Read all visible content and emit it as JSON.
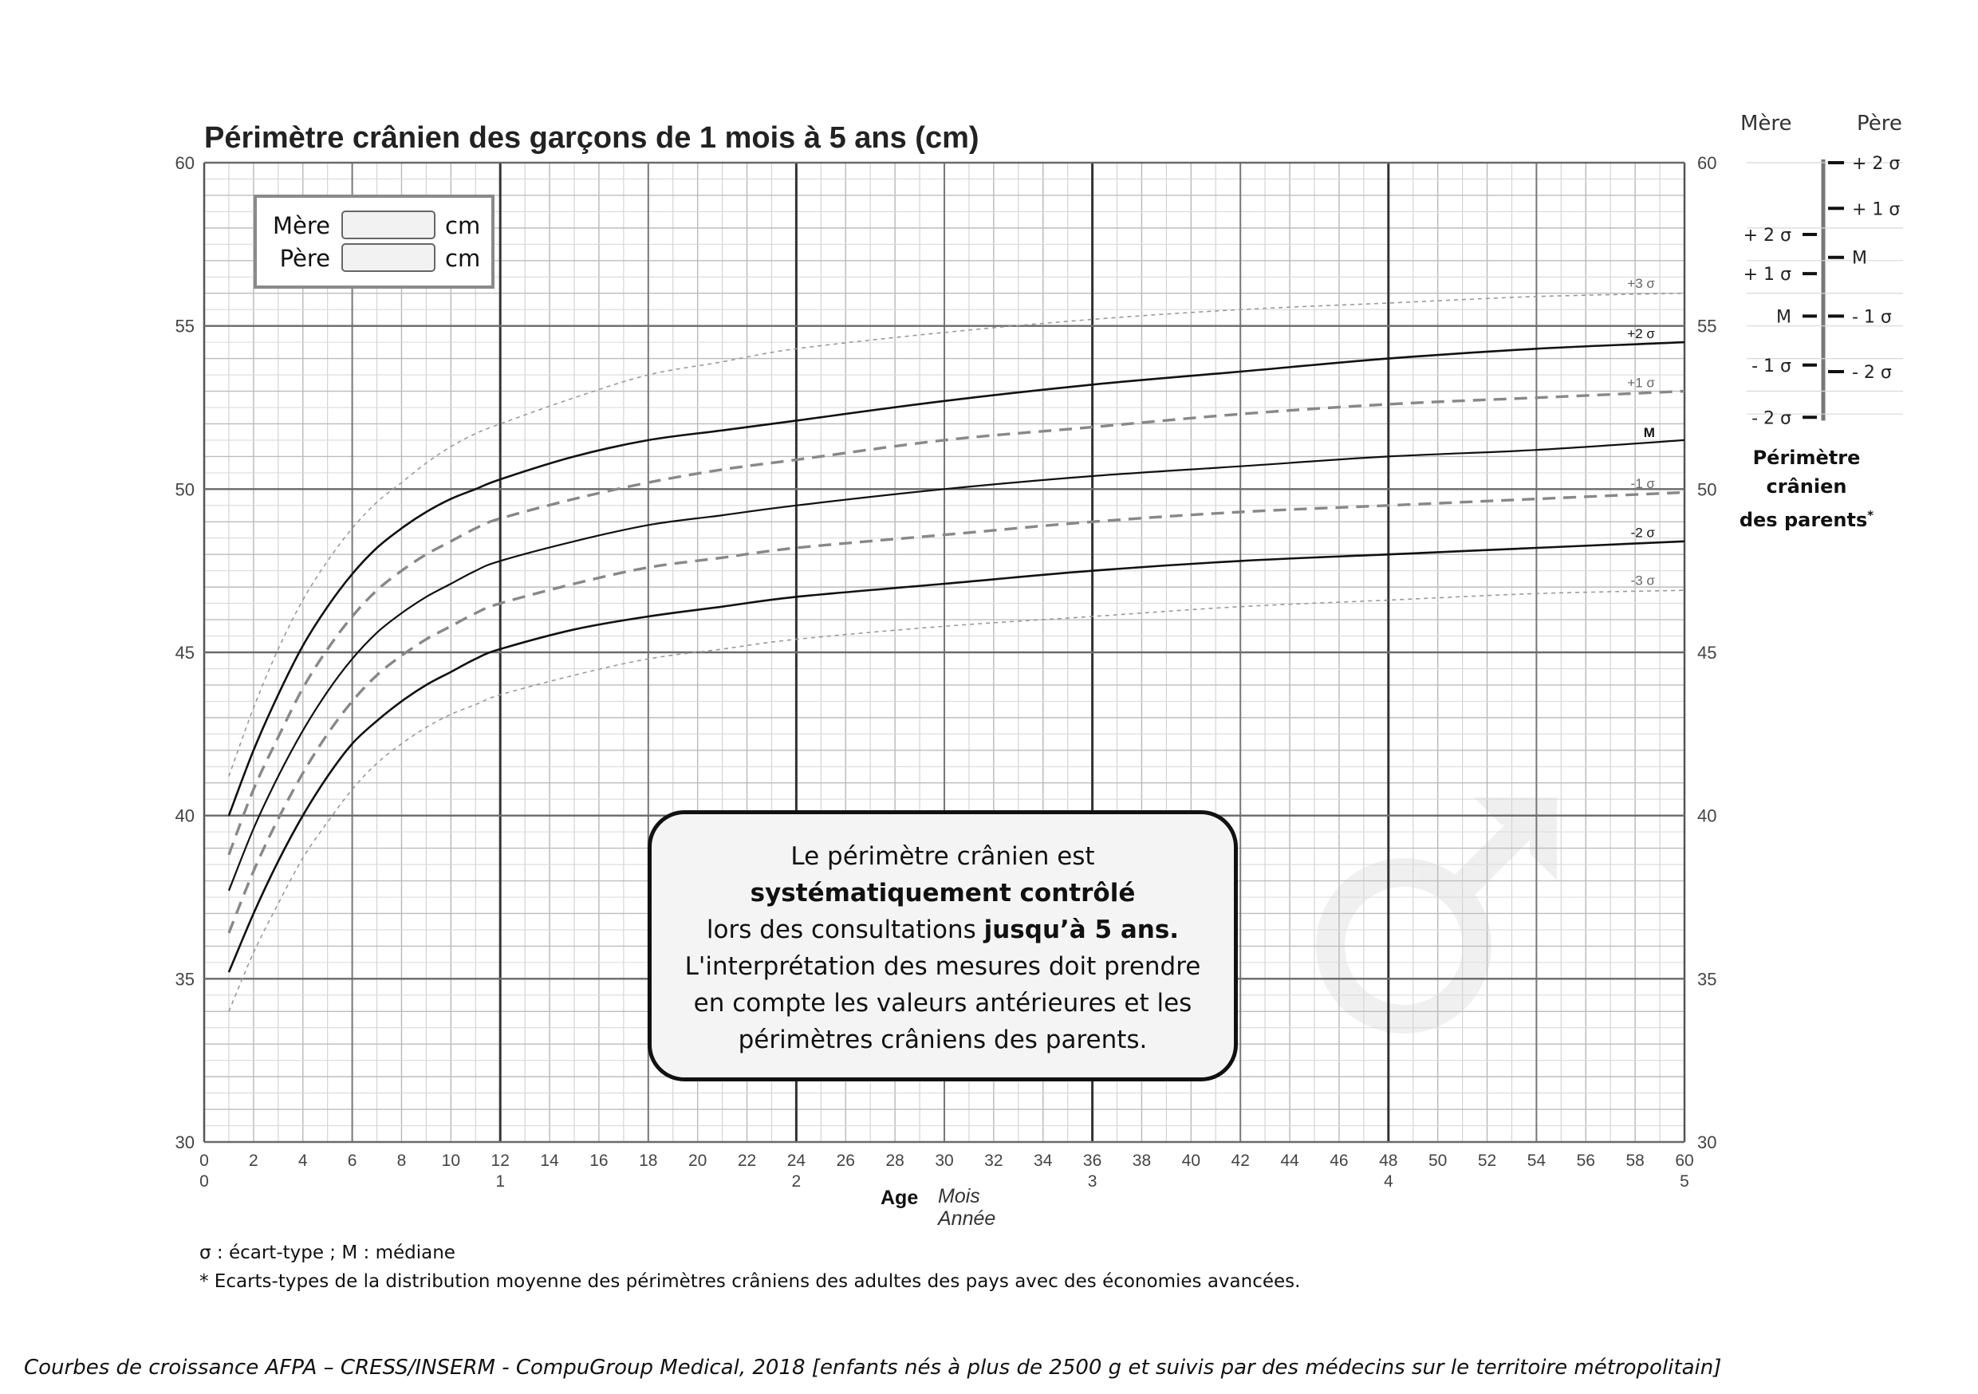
{
  "header": {
    "title": "Périmètre crânien des garçons de 1 mois à 5 ans (cm)"
  },
  "parents_input": {
    "mother_label": "Mère",
    "father_label": "Père",
    "unit": "cm",
    "mother_value": "",
    "father_value": ""
  },
  "note": {
    "line1": "Le périmètre crânien est",
    "line2_bold": "systématiquement contrôlé",
    "line3_normal": "lors des consultations ",
    "line3_bold": "jusqu’à 5 ans.",
    "line4": "L'interprétation des mesures doit prendre",
    "line5": "en compte les valeurs antérieures et les",
    "line6": "périmètres crâniens des parents."
  },
  "axis": {
    "age_label": "Age",
    "months_label": "Mois",
    "years_label": "Année"
  },
  "parents_scale": {
    "mother_header": "Mère",
    "father_header": "Père",
    "title_line1": "Périmètre crânien",
    "title_line2": "des parents",
    "title_mark": "*",
    "mother_ticks": [
      {
        "label": "+ 2 σ",
        "value": 57.8
      },
      {
        "label": "+ 1 σ",
        "value": 56.6
      },
      {
        "label": "M",
        "value": 55.3
      },
      {
        "label": "- 1 σ",
        "value": 53.8
      },
      {
        "label": "- 2 σ",
        "value": 52.2
      }
    ],
    "father_ticks": [
      {
        "label": "+ 2 σ",
        "value": 60.0
      },
      {
        "label": "+ 1 σ",
        "value": 58.6
      },
      {
        "label": "M",
        "value": 57.1
      },
      {
        "label": "- 1 σ",
        "value": 55.3
      },
      {
        "label": "- 2 σ",
        "value": 53.6
      }
    ]
  },
  "footnotes": {
    "sigma": "σ : écart-type ; M : médiane",
    "star": "* Ecarts-types de la distribution moyenne des périmètres crâniens des adultes des pays avec des économies avancées."
  },
  "source": "Courbes de croissance  AFPA – CRESS/INSERM - CompuGroup Medical, 2018 [enfants nés à plus de 2500 g et suivis par des médecins sur le territoire métropolitain]",
  "colors": {
    "solid_curve": "#111111",
    "dashed_curve": "#888888",
    "dotted_curve": "#9a9a9a",
    "grid_minor": "#c8c8c8",
    "grid_major": "#6e6e6e"
  },
  "chart_data": {
    "type": "line",
    "xlabel": "Age",
    "x_units": [
      "Mois",
      "Année"
    ],
    "xlim": [
      0,
      60
    ],
    "ylim": [
      30,
      60
    ],
    "x_ticks": [
      0,
      2,
      4,
      6,
      8,
      10,
      12,
      14,
      16,
      18,
      20,
      22,
      24,
      26,
      28,
      30,
      32,
      34,
      36,
      38,
      40,
      42,
      44,
      46,
      48,
      50,
      52,
      54,
      56,
      58,
      60
    ],
    "x_year_ticks": [
      {
        "x": 0,
        "label": "0"
      },
      {
        "x": 12,
        "label": "1"
      },
      {
        "x": 24,
        "label": "2"
      },
      {
        "x": 36,
        "label": "3"
      },
      {
        "x": 48,
        "label": "4"
      },
      {
        "x": 60,
        "label": "5"
      }
    ],
    "y_ticks": [
      30,
      35,
      40,
      45,
      50,
      55,
      60
    ],
    "grid": true,
    "x": [
      1,
      2,
      3,
      4,
      5,
      6,
      7,
      8,
      9,
      10,
      11,
      12,
      15,
      18,
      21,
      24,
      30,
      36,
      42,
      48,
      54,
      60
    ],
    "series": [
      {
        "name": "+3 σ",
        "style": "dotted",
        "values": [
          41.2,
          43.3,
          45.1,
          46.6,
          47.8,
          48.8,
          49.6,
          50.2,
          50.8,
          51.3,
          51.7,
          52.0,
          52.8,
          53.5,
          53.9,
          54.3,
          54.8,
          55.2,
          55.5,
          55.7,
          55.9,
          56.0
        ]
      },
      {
        "name": "+2 σ",
        "style": "solid",
        "values": [
          40.0,
          42.0,
          43.7,
          45.2,
          46.4,
          47.4,
          48.2,
          48.8,
          49.3,
          49.7,
          50.0,
          50.3,
          51.0,
          51.5,
          51.8,
          52.1,
          52.7,
          53.2,
          53.6,
          54.0,
          54.3,
          54.5
        ]
      },
      {
        "name": "+1 σ",
        "style": "dashed",
        "values": [
          38.8,
          40.8,
          42.4,
          43.9,
          45.1,
          46.1,
          46.9,
          47.5,
          48.0,
          48.4,
          48.8,
          49.1,
          49.7,
          50.2,
          50.6,
          50.9,
          51.5,
          51.9,
          52.3,
          52.6,
          52.8,
          53.0
        ]
      },
      {
        "name": "M",
        "style": "solid",
        "values": [
          37.7,
          39.6,
          41.2,
          42.6,
          43.8,
          44.8,
          45.6,
          46.2,
          46.7,
          47.1,
          47.5,
          47.8,
          48.4,
          48.9,
          49.2,
          49.5,
          50.0,
          50.4,
          50.7,
          51.0,
          51.2,
          51.5
        ]
      },
      {
        "name": "-1 σ",
        "style": "dashed",
        "values": [
          36.4,
          38.3,
          39.9,
          41.3,
          42.5,
          43.5,
          44.3,
          44.9,
          45.4,
          45.8,
          46.2,
          46.5,
          47.1,
          47.6,
          47.9,
          48.2,
          48.6,
          49.0,
          49.3,
          49.5,
          49.7,
          49.9
        ]
      },
      {
        "name": "-2 σ",
        "style": "solid",
        "values": [
          35.2,
          37.0,
          38.6,
          40.0,
          41.2,
          42.2,
          42.9,
          43.5,
          44.0,
          44.4,
          44.8,
          45.1,
          45.7,
          46.1,
          46.4,
          46.7,
          47.1,
          47.5,
          47.8,
          48.0,
          48.2,
          48.4
        ]
      },
      {
        "name": "-3 σ",
        "style": "dotted",
        "values": [
          34.0,
          35.8,
          37.3,
          38.7,
          39.8,
          40.8,
          41.6,
          42.2,
          42.7,
          43.1,
          43.4,
          43.7,
          44.3,
          44.8,
          45.1,
          45.4,
          45.8,
          46.1,
          46.4,
          46.6,
          46.8,
          46.9
        ]
      }
    ]
  }
}
